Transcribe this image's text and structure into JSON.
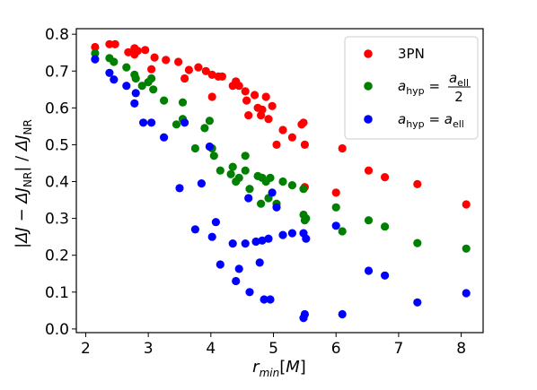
{
  "chart_data": {
    "type": "scatter",
    "xlabel": "r_min[M]",
    "ylabel": "|ΔJ − ΔJ_NR| / ΔJ_NR",
    "xlim": [
      1.85,
      8.35
    ],
    "ylim": [
      -0.01,
      0.815
    ],
    "xticks": [
      "2",
      "3",
      "4",
      "5",
      "6",
      "7",
      "8"
    ],
    "yticks": [
      "0.0",
      "0.1",
      "0.2",
      "0.3",
      "0.4",
      "0.5",
      "0.6",
      "0.7",
      "0.8"
    ],
    "grid": false,
    "legend_position": "top-right",
    "series": [
      {
        "name": "3PN",
        "legend_text": "3PN",
        "color": "#ff0000",
        "points": [
          [
            2.15,
            0.765
          ],
          [
            2.38,
            0.773
          ],
          [
            2.47,
            0.773
          ],
          [
            2.68,
            0.751
          ],
          [
            2.78,
            0.762
          ],
          [
            2.78,
            0.745
          ],
          [
            2.83,
            0.755
          ],
          [
            2.95,
            0.757
          ],
          [
            3.05,
            0.705
          ],
          [
            3.1,
            0.737
          ],
          [
            3.28,
            0.73
          ],
          [
            3.48,
            0.725
          ],
          [
            3.58,
            0.68
          ],
          [
            3.65,
            0.703
          ],
          [
            3.8,
            0.71
          ],
          [
            3.92,
            0.7
          ],
          [
            4.02,
            0.69
          ],
          [
            4.02,
            0.63
          ],
          [
            4.12,
            0.685
          ],
          [
            4.18,
            0.685
          ],
          [
            4.35,
            0.66
          ],
          [
            4.4,
            0.672
          ],
          [
            4.45,
            0.66
          ],
          [
            4.55,
            0.645
          ],
          [
            4.57,
            0.62
          ],
          [
            4.6,
            0.58
          ],
          [
            4.7,
            0.635
          ],
          [
            4.75,
            0.6
          ],
          [
            4.8,
            0.58
          ],
          [
            4.82,
            0.595
          ],
          [
            4.88,
            0.63
          ],
          [
            4.92,
            0.57
          ],
          [
            4.98,
            0.605
          ],
          [
            5.05,
            0.5
          ],
          [
            5.15,
            0.54
          ],
          [
            5.3,
            0.52
          ],
          [
            5.45,
            0.555
          ],
          [
            5.48,
            0.56
          ],
          [
            5.5,
            0.5
          ],
          [
            5.5,
            0.385
          ],
          [
            6.0,
            0.37
          ],
          [
            6.1,
            0.49
          ],
          [
            6.52,
            0.43
          ],
          [
            6.78,
            0.412
          ],
          [
            7.3,
            0.393
          ],
          [
            8.08,
            0.338
          ]
        ]
      },
      {
        "name": "a_hyp = a_ell / 2",
        "legend_text": "a_hyp = a_ell / 2",
        "color": "#008000",
        "points": [
          [
            2.15,
            0.748
          ],
          [
            2.38,
            0.735
          ],
          [
            2.45,
            0.725
          ],
          [
            2.65,
            0.71
          ],
          [
            2.78,
            0.69
          ],
          [
            2.8,
            0.68
          ],
          [
            2.9,
            0.66
          ],
          [
            3.0,
            0.67
          ],
          [
            3.05,
            0.68
          ],
          [
            3.08,
            0.65
          ],
          [
            3.25,
            0.62
          ],
          [
            3.45,
            0.555
          ],
          [
            3.55,
            0.615
          ],
          [
            3.55,
            0.57
          ],
          [
            3.75,
            0.49
          ],
          [
            3.9,
            0.545
          ],
          [
            3.98,
            0.565
          ],
          [
            4.02,
            0.49
          ],
          [
            4.05,
            0.47
          ],
          [
            4.15,
            0.43
          ],
          [
            4.32,
            0.42
          ],
          [
            4.35,
            0.44
          ],
          [
            4.4,
            0.4
          ],
          [
            4.45,
            0.41
          ],
          [
            4.55,
            0.47
          ],
          [
            4.55,
            0.43
          ],
          [
            4.62,
            0.38
          ],
          [
            4.75,
            0.415
          ],
          [
            4.8,
            0.34
          ],
          [
            4.82,
            0.41
          ],
          [
            4.88,
            0.4
          ],
          [
            4.92,
            0.355
          ],
          [
            4.95,
            0.41
          ],
          [
            5.05,
            0.34
          ],
          [
            5.15,
            0.4
          ],
          [
            5.3,
            0.39
          ],
          [
            5.48,
            0.38
          ],
          [
            5.48,
            0.31
          ],
          [
            5.5,
            0.295
          ],
          [
            5.52,
            0.3
          ],
          [
            6.0,
            0.33
          ],
          [
            6.1,
            0.265
          ],
          [
            6.52,
            0.295
          ],
          [
            6.78,
            0.278
          ],
          [
            7.3,
            0.233
          ],
          [
            8.08,
            0.218
          ]
        ]
      },
      {
        "name": "a_hyp = a_ell",
        "legend_text": "a_hyp = a_ell",
        "color": "#0000ff",
        "points": [
          [
            2.15,
            0.732
          ],
          [
            2.38,
            0.695
          ],
          [
            2.45,
            0.677
          ],
          [
            2.65,
            0.66
          ],
          [
            2.78,
            0.612
          ],
          [
            2.8,
            0.64
          ],
          [
            2.92,
            0.56
          ],
          [
            3.05,
            0.56
          ],
          [
            3.25,
            0.52
          ],
          [
            3.5,
            0.382
          ],
          [
            3.58,
            0.56
          ],
          [
            3.75,
            0.27
          ],
          [
            3.85,
            0.395
          ],
          [
            3.98,
            0.495
          ],
          [
            4.02,
            0.25
          ],
          [
            4.08,
            0.29
          ],
          [
            4.15,
            0.175
          ],
          [
            4.35,
            0.232
          ],
          [
            4.4,
            0.13
          ],
          [
            4.45,
            0.163
          ],
          [
            4.55,
            0.232
          ],
          [
            4.6,
            0.355
          ],
          [
            4.62,
            0.1
          ],
          [
            4.72,
            0.237
          ],
          [
            4.78,
            0.18
          ],
          [
            4.82,
            0.24
          ],
          [
            4.85,
            0.08
          ],
          [
            4.92,
            0.245
          ],
          [
            4.95,
            0.08
          ],
          [
            4.98,
            0.37
          ],
          [
            5.05,
            0.33
          ],
          [
            5.15,
            0.255
          ],
          [
            5.3,
            0.26
          ],
          [
            5.48,
            0.26
          ],
          [
            5.48,
            0.03
          ],
          [
            5.5,
            0.04
          ],
          [
            5.52,
            0.245
          ],
          [
            6.0,
            0.28
          ],
          [
            6.1,
            0.04
          ],
          [
            6.52,
            0.158
          ],
          [
            6.78,
            0.145
          ],
          [
            7.3,
            0.072
          ],
          [
            8.08,
            0.097
          ]
        ]
      }
    ]
  }
}
